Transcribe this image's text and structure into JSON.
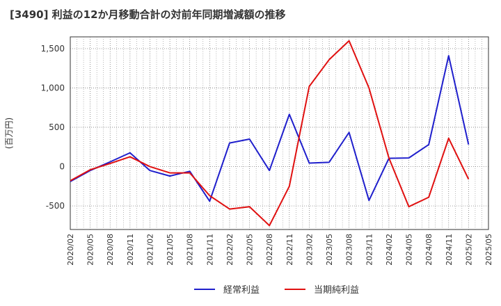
{
  "chart_data": {
    "type": "line",
    "title": "[3490]  利益の12か月移動合計の対前年同期増減額の推移",
    "ylabel": "(百万円)",
    "xlabel": "",
    "ylim": [
      -800,
      1650
    ],
    "yticks": [
      -500,
      0,
      500,
      1000,
      1500
    ],
    "ytick_labels": [
      "-500",
      "0",
      "500",
      "1,000",
      "1,500"
    ],
    "categories": [
      "2020/02",
      "2020/05",
      "2020/08",
      "2020/11",
      "2021/02",
      "2021/05",
      "2021/08",
      "2021/11",
      "2022/02",
      "2022/05",
      "2022/08",
      "2022/11",
      "2023/02",
      "2023/05",
      "2023/08",
      "2023/11",
      "2024/02",
      "2024/05",
      "2024/08",
      "2024/11",
      "2025/02",
      "2025/05"
    ],
    "series": [
      {
        "name": "経常利益",
        "color": "#1f1fcc",
        "values": [
          -190,
          -50,
          60,
          175,
          -50,
          -120,
          -60,
          -440,
          300,
          350,
          -50,
          665,
          45,
          55,
          435,
          -430,
          105,
          110,
          280,
          1410,
          280,
          null
        ]
      },
      {
        "name": "当期純利益",
        "color": "#e01010",
        "values": [
          -180,
          -40,
          40,
          125,
          0,
          -80,
          -80,
          -370,
          -540,
          -510,
          -750,
          -250,
          1020,
          1360,
          1600,
          1000,
          110,
          -510,
          -390,
          360,
          -160,
          null
        ]
      }
    ],
    "grid": true,
    "legend": "bottom"
  }
}
